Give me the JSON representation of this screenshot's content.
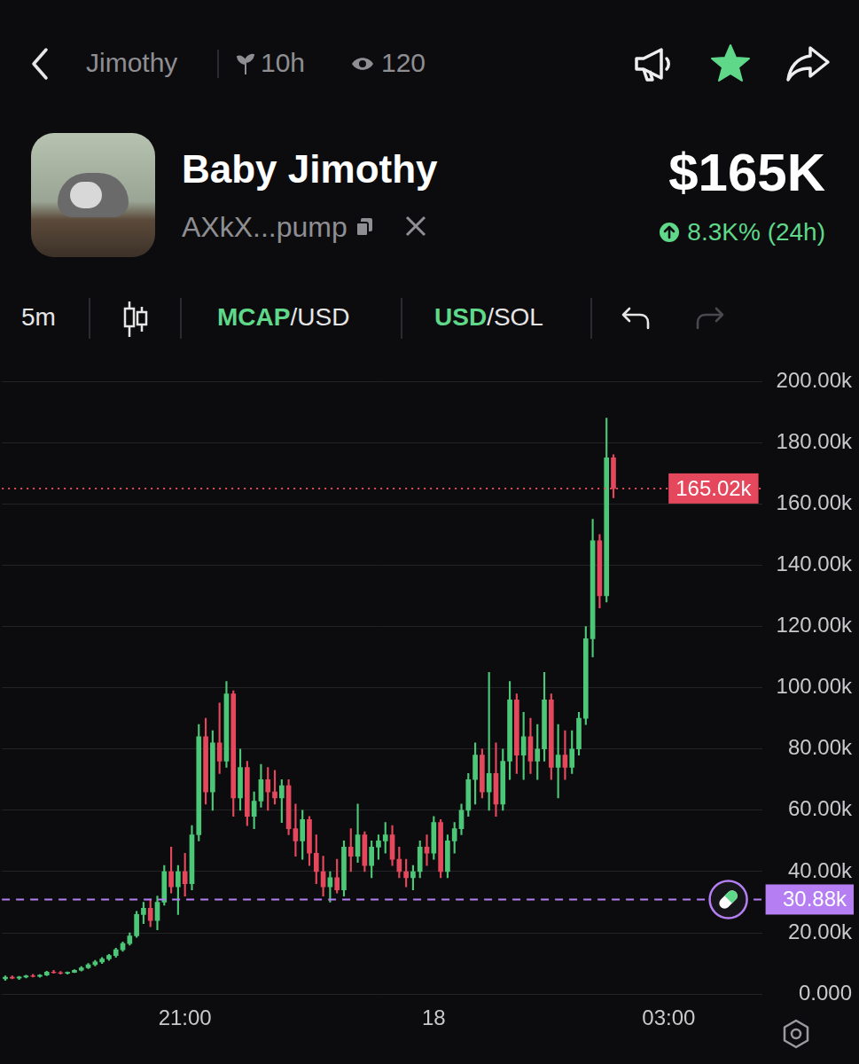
{
  "header": {
    "parent": "Jimothy",
    "age": "10h",
    "viewers": "120",
    "title": "Baby Jimothy",
    "address": "AXkX...pump",
    "market_cap": "$165K",
    "change": "8.3K% (24h)"
  },
  "toolbar": {
    "interval": "5m",
    "mcap_toggle": [
      "MCAP",
      "/USD"
    ],
    "currency_toggle": [
      "USD",
      "/SOL"
    ]
  },
  "chart_data": {
    "type": "candlestick",
    "categories": [
      null,
      null,
      null,
      null,
      null,
      null,
      null,
      null,
      null,
      null,
      null,
      null,
      null,
      null,
      null,
      null,
      null,
      null,
      null,
      null,
      null,
      null,
      null,
      null,
      null,
      null,
      "21:00",
      null,
      null,
      null,
      null,
      null,
      null,
      null,
      null,
      null,
      null,
      null,
      null,
      null,
      null,
      null,
      null,
      null,
      null,
      null,
      null,
      null,
      null,
      null,
      null,
      null,
      null,
      null,
      null,
      null,
      null,
      null,
      null,
      null,
      null,
      null,
      "18",
      null,
      null,
      null,
      null,
      null,
      null,
      null,
      null,
      null,
      null,
      null,
      null,
      null,
      null,
      null,
      null,
      null,
      null,
      null,
      null,
      null,
      null,
      null,
      null,
      null,
      null,
      null,
      null,
      null,
      null,
      null,
      null,
      null,
      "03:00",
      null,
      null,
      null,
      null,
      null,
      null,
      null,
      null,
      null,
      null,
      null,
      null,
      null
    ],
    "values": [
      [
        5000,
        6000,
        4500,
        5500
      ],
      [
        5500,
        6000,
        5000,
        5200
      ],
      [
        5200,
        5800,
        4800,
        5600
      ],
      [
        5600,
        6200,
        5300,
        6000
      ],
      [
        6000,
        6500,
        5600,
        5800
      ],
      [
        5800,
        6400,
        5500,
        6200
      ],
      [
        6200,
        7500,
        6000,
        7200
      ],
      [
        7200,
        7800,
        6800,
        7000
      ],
      [
        7000,
        7400,
        6500,
        6800
      ],
      [
        6800,
        7300,
        6500,
        7100
      ],
      [
        7100,
        8000,
        7000,
        7800
      ],
      [
        7800,
        9000,
        7500,
        8600
      ],
      [
        8600,
        10000,
        8300,
        9600
      ],
      [
        9600,
        11000,
        9200,
        10500
      ],
      [
        10500,
        12000,
        10000,
        11500
      ],
      [
        11500,
        13000,
        11000,
        12600
      ],
      [
        12600,
        15000,
        12000,
        14500
      ],
      [
        14500,
        17000,
        14000,
        16500
      ],
      [
        16500,
        20000,
        16000,
        19000
      ],
      [
        19000,
        27000,
        18500,
        26000
      ],
      [
        26000,
        30000,
        23000,
        28000
      ],
      [
        28000,
        31000,
        22000,
        24000
      ],
      [
        24000,
        32000,
        21000,
        30000
      ],
      [
        30000,
        42000,
        29000,
        40000
      ],
      [
        40000,
        48000,
        33000,
        35000
      ],
      [
        35000,
        42000,
        26000,
        40000
      ],
      [
        40000,
        46000,
        32000,
        36000
      ],
      [
        36000,
        55000,
        34000,
        52000
      ],
      [
        52000,
        88000,
        50000,
        84000
      ],
      [
        84000,
        90000,
        62000,
        66000
      ],
      [
        66000,
        86000,
        60000,
        82000
      ],
      [
        82000,
        95000,
        72000,
        76000
      ],
      [
        76000,
        102000,
        74000,
        98000
      ],
      [
        98000,
        99000,
        58000,
        64000
      ],
      [
        64000,
        80000,
        60000,
        74000
      ],
      [
        74000,
        76000,
        55000,
        58000
      ],
      [
        58000,
        66000,
        54000,
        63000
      ],
      [
        63000,
        75000,
        61000,
        70000
      ],
      [
        70000,
        74000,
        60000,
        66000
      ],
      [
        66000,
        73000,
        62000,
        64000
      ],
      [
        64000,
        70000,
        56000,
        68000
      ],
      [
        68000,
        70000,
        52000,
        54000
      ],
      [
        54000,
        62000,
        45000,
        50000
      ],
      [
        50000,
        60000,
        44000,
        57000
      ],
      [
        57000,
        58000,
        42000,
        46000
      ],
      [
        46000,
        52000,
        36000,
        40000
      ],
      [
        40000,
        45000,
        32000,
        35000
      ],
      [
        35000,
        40000,
        30000,
        38000
      ],
      [
        38000,
        44000,
        33000,
        34000
      ],
      [
        34000,
        50000,
        32000,
        48000
      ],
      [
        48000,
        54000,
        40000,
        45000
      ],
      [
        45000,
        62000,
        43000,
        52000
      ],
      [
        52000,
        53000,
        40000,
        42000
      ],
      [
        42000,
        50000,
        38000,
        48000
      ],
      [
        48000,
        52000,
        44000,
        50000
      ],
      [
        50000,
        56000,
        46000,
        52000
      ],
      [
        52000,
        55000,
        42000,
        44000
      ],
      [
        44000,
        48000,
        38000,
        40000
      ],
      [
        40000,
        44000,
        35000,
        38000
      ],
      [
        38000,
        42000,
        34000,
        40000
      ],
      [
        40000,
        50000,
        38000,
        48000
      ],
      [
        48000,
        52000,
        42000,
        46000
      ],
      [
        46000,
        58000,
        44000,
        56000
      ],
      [
        56000,
        57000,
        38000,
        40000
      ],
      [
        40000,
        52000,
        38000,
        50000
      ],
      [
        50000,
        56000,
        46000,
        54000
      ],
      [
        54000,
        62000,
        52000,
        60000
      ],
      [
        60000,
        72000,
        58000,
        70000
      ],
      [
        70000,
        82000,
        62000,
        78000
      ],
      [
        78000,
        80000,
        64000,
        66000
      ],
      [
        66000,
        105000,
        60000,
        72000
      ],
      [
        72000,
        82000,
        58000,
        62000
      ],
      [
        62000,
        80000,
        60000,
        76000
      ],
      [
        76000,
        102000,
        70000,
        96000
      ],
      [
        96000,
        98000,
        72000,
        78000
      ],
      [
        78000,
        92000,
        70000,
        84000
      ],
      [
        84000,
        90000,
        72000,
        76000
      ],
      [
        76000,
        88000,
        70000,
        80000
      ],
      [
        80000,
        105000,
        76000,
        96000
      ],
      [
        96000,
        98000,
        70000,
        74000
      ],
      [
        74000,
        88000,
        64000,
        78000
      ],
      [
        78000,
        86000,
        70000,
        74000
      ],
      [
        74000,
        86000,
        72000,
        80000
      ],
      [
        80000,
        92000,
        78000,
        90000
      ],
      [
        90000,
        120000,
        88000,
        116000
      ],
      [
        116000,
        155000,
        110000,
        148000
      ],
      [
        148000,
        150000,
        126000,
        130000
      ],
      [
        130000,
        188000,
        128000,
        175000
      ],
      [
        175000,
        176000,
        162000,
        165020
      ],
      null,
      null,
      null,
      null,
      null,
      null,
      null,
      null,
      null,
      null,
      null,
      null,
      null,
      null,
      null,
      null,
      null,
      null,
      null,
      null,
      null,
      null,
      null
    ],
    "ylim": [
      0,
      200000
    ],
    "yticks": [
      {
        "value": 0,
        "label": "0.000"
      },
      {
        "value": 20000,
        "label": "20.00k"
      },
      {
        "value": 40000,
        "label": "40.00k"
      },
      {
        "value": 60000,
        "label": "60.00k"
      },
      {
        "value": 80000,
        "label": "80.00k"
      },
      {
        "value": 100000,
        "label": "100.00k"
      },
      {
        "value": 120000,
        "label": "120.00k"
      },
      {
        "value": 140000,
        "label": "140.00k"
      },
      {
        "value": 160000,
        "label": "160.00k"
      },
      {
        "value": 180000,
        "label": "180.00k"
      },
      {
        "value": 200000,
        "label": "200.00k"
      }
    ],
    "grid": true,
    "annotations": [
      {
        "value": 165020,
        "label": "165.02k",
        "color": "#e5485c",
        "line_style": "dotted"
      },
      {
        "value": 30880,
        "label": "30.88k",
        "color": "#b57ef2",
        "line_style": "dashed"
      }
    ]
  }
}
